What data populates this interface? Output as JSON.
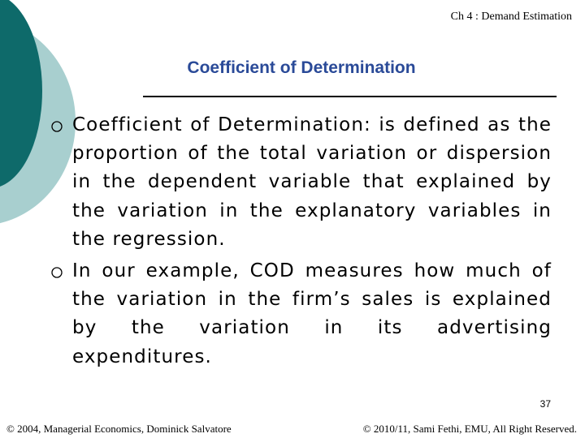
{
  "header": {
    "chapter": "Ch 4 : Demand Estimation",
    "title": "Coefficient of Determination"
  },
  "bullets": [
    "Coefficient of Determination: is defined as the proportion of the total variation or dispersion in the dependent variable that explained by the variation in the explanatory variables in the regression.",
    "In our example, COD measures how much of the variation in the firm’s sales is explained by the variation in its advertising expenditures."
  ],
  "page_number": "37",
  "footer": {
    "left": "© 2004, Managerial Economics, Dominick Salvatore",
    "right": "© 2010/11, Sami Fethi, EMU, All Right Reserved."
  }
}
